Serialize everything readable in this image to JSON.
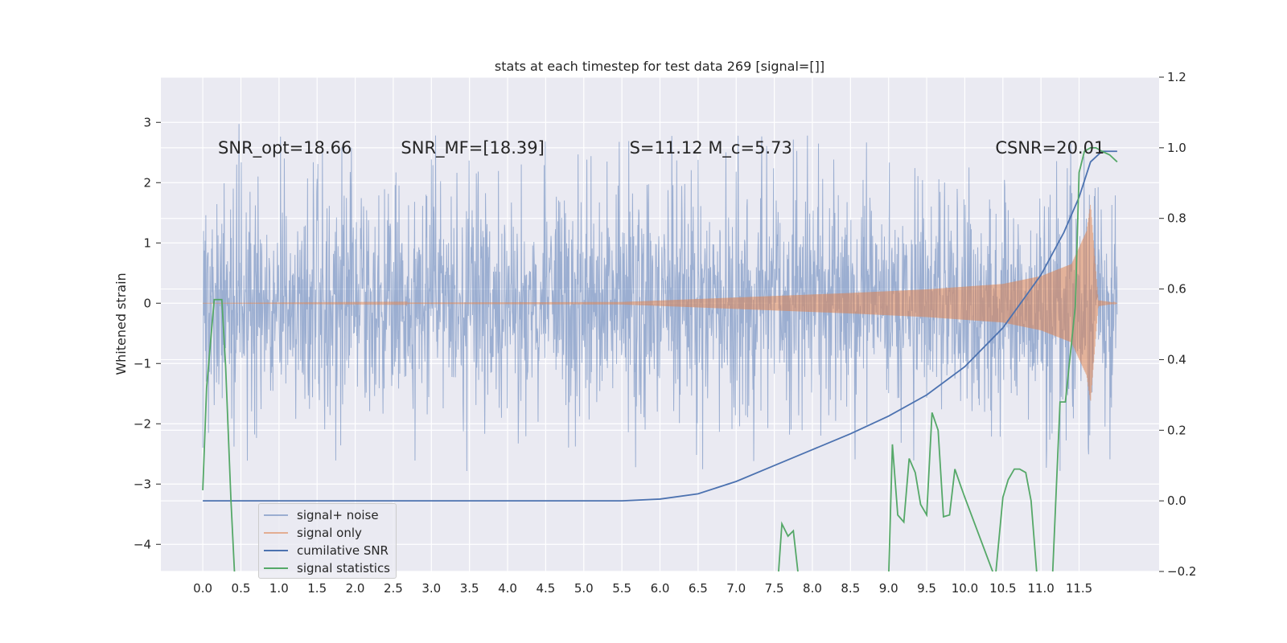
{
  "chart_data": {
    "type": "line",
    "title": "stats at each timestep for test data 269 [signal=[]]",
    "ylabel": "Whitened strain",
    "xlabel": "",
    "xlim": [
      -0.55,
      12.55
    ],
    "ylim": [
      -4.45,
      3.75
    ],
    "y2lim": [
      -0.2,
      1.2
    ],
    "x_ticks": [
      "0.0",
      "0.5",
      "1.0",
      "1.5",
      "2.0",
      "2.5",
      "3.0",
      "3.5",
      "4.0",
      "4.5",
      "5.0",
      "5.5",
      "6.0",
      "6.5",
      "7.0",
      "7.5",
      "8.0",
      "8.5",
      "9.0",
      "9.5",
      "10.0",
      "10.5",
      "11.0",
      "11.5"
    ],
    "y_ticks": [
      "3",
      "2",
      "1",
      "0",
      "−1",
      "−2",
      "−3",
      "−4"
    ],
    "y2_ticks": [
      "1.2",
      "1.0",
      "0.8",
      "0.6",
      "0.4",
      "0.2",
      "0.0",
      "−0.2"
    ],
    "grid": true,
    "legend_position": "lower-left",
    "annotations": [
      {
        "text": "SNR_opt=18.66",
        "x": 0.2,
        "y": 2.58
      },
      {
        "text": "SNR_MF=[18.39]",
        "x": 2.6,
        "y": 2.58
      },
      {
        "text": "S=11.12 M_c=5.73",
        "x": 5.6,
        "y": 2.58
      },
      {
        "text": "CSNR=20.01",
        "x": 10.4,
        "y": 2.58
      }
    ],
    "colors": {
      "signal_noise": "#4c72b0",
      "signal_only": "#dd8452",
      "cumulative_snr": "#4c72b0",
      "signal_statistics": "#55a868",
      "axes_bg": "#eaeaf2"
    },
    "series": [
      {
        "name": "signal+ noise",
        "axis": "left",
        "style": "noisy",
        "x_range": [
          0,
          12.0
        ],
        "envelope_upper": 1.4,
        "envelope_lower": -1.4,
        "peak_max": 3.35,
        "peak_min": -3.55
      },
      {
        "name": "signal only",
        "axis": "left",
        "style": "chirp",
        "x_range": [
          0,
          12.0
        ],
        "x": [
          0,
          5.5,
          6.5,
          7.5,
          8.5,
          9.5,
          10.5,
          11.0,
          11.4,
          11.6,
          11.65,
          11.75,
          12.0
        ],
        "amplitude": [
          0.0,
          0.02,
          0.07,
          0.12,
          0.17,
          0.23,
          0.32,
          0.45,
          0.65,
          1.2,
          1.65,
          0.05,
          0.0
        ]
      },
      {
        "name": "cumilative SNR",
        "axis": "right",
        "x": [
          0,
          5.5,
          6.0,
          6.5,
          7.0,
          7.5,
          8.0,
          8.5,
          9.0,
          9.5,
          10.0,
          10.5,
          11.0,
          11.3,
          11.5,
          11.65,
          11.8,
          12.0
        ],
        "y": [
          0.0,
          0.0,
          0.005,
          0.02,
          0.055,
          0.1,
          0.145,
          0.19,
          0.24,
          0.3,
          0.38,
          0.49,
          0.64,
          0.76,
          0.86,
          0.96,
          0.99,
          0.99
        ]
      },
      {
        "name": "signal statistics",
        "axis": "right",
        "x": [
          0,
          0.05,
          0.15,
          0.25,
          0.3,
          0.37,
          0.42,
          7.55,
          7.6,
          7.68,
          7.75,
          7.82,
          9.0,
          9.05,
          9.12,
          9.2,
          9.27,
          9.35,
          9.42,
          9.5,
          9.57,
          9.65,
          9.72,
          9.8,
          9.87,
          9.95,
          10.0,
          10.4,
          10.5,
          10.57,
          10.65,
          10.72,
          10.8,
          10.87,
          10.95,
          11.15,
          11.25,
          11.32,
          11.45,
          11.5,
          11.57,
          11.65,
          11.72,
          11.8,
          11.9,
          12.0
        ],
        "y": [
          0.03,
          0.32,
          0.57,
          0.57,
          0.38,
          0.0,
          -0.22,
          -0.22,
          -0.065,
          -0.1,
          -0.085,
          -0.22,
          -0.22,
          0.16,
          -0.04,
          -0.06,
          0.12,
          0.08,
          -0.01,
          -0.04,
          0.25,
          0.2,
          -0.045,
          -0.04,
          0.09,
          0.04,
          0.01,
          -0.22,
          0.01,
          0.06,
          0.09,
          0.09,
          0.08,
          0.0,
          -0.22,
          -0.22,
          0.28,
          0.28,
          0.55,
          0.93,
          0.99,
          1.0,
          1.0,
          0.99,
          0.98,
          0.96
        ]
      }
    ]
  }
}
